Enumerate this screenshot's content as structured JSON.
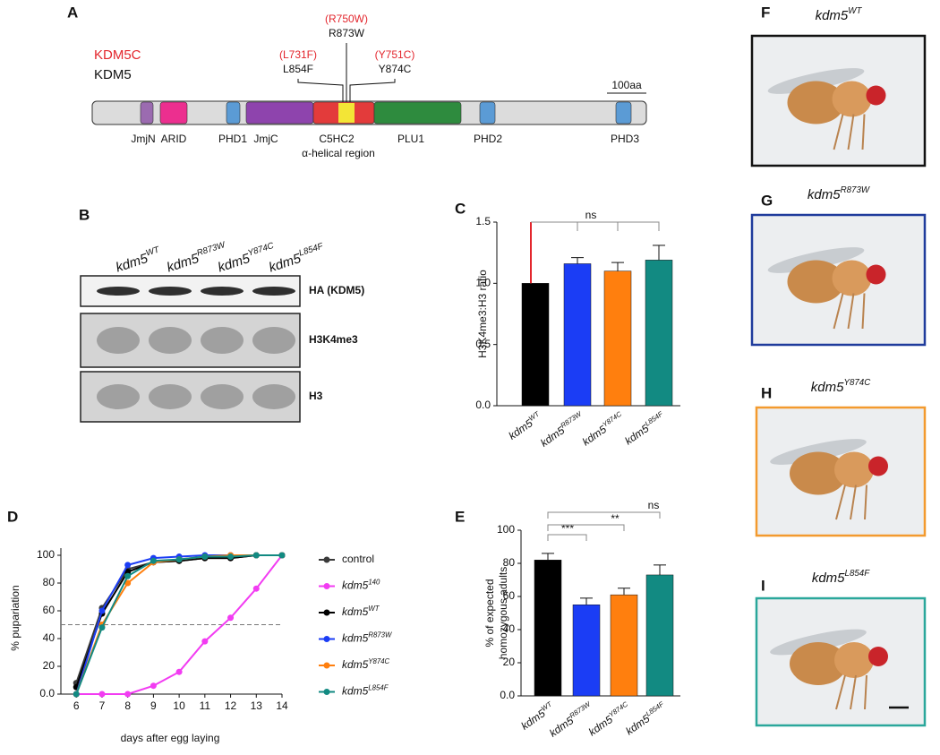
{
  "panel_labels": [
    "A",
    "B",
    "C",
    "D",
    "E",
    "F",
    "G",
    "H",
    "I"
  ],
  "protein_diagram": {
    "legend": [
      {
        "text": "KDM5C",
        "color": "#e3262d"
      },
      {
        "text": "KDM5",
        "color": "#111111"
      }
    ],
    "domains": [
      {
        "label": "JmjN",
        "color": "#9b6bb0"
      },
      {
        "label": "ARID",
        "color": "#ec2f8f"
      },
      {
        "label": "PHD1",
        "color": "#5b9bd5"
      },
      {
        "label": "JmjC",
        "color": "#8e44ad"
      },
      {
        "label": "C5HC2",
        "color": "#e33b3b"
      },
      {
        "label": "PLU1",
        "color": "#2e8b3e"
      },
      {
        "label": "PHD2",
        "color": "#5b9bd5"
      },
      {
        "label": "PHD3",
        "color": "#5b9bd5"
      }
    ],
    "region_label": "α-helical region",
    "mutations": [
      {
        "human": "(L731F)",
        "fly": "L854F"
      },
      {
        "human": "(R750W)",
        "fly": "R873W"
      },
      {
        "human": "(Y751C)",
        "fly": "Y874C"
      }
    ],
    "scale_label": "100aa"
  },
  "western_blot": {
    "lanes": [
      {
        "base": "kdm5",
        "sup": "WT"
      },
      {
        "base": "kdm5",
        "sup": "R873W"
      },
      {
        "base": "kdm5",
        "sup": "Y874C"
      },
      {
        "base": "kdm5",
        "sup": "L854F"
      }
    ],
    "blots": [
      "HA (KDM5)",
      "H3K4me3",
      "H3"
    ]
  },
  "chart_data": [
    {
      "type": "bar",
      "ylabel": "H3K4me3:H3 ratio",
      "categories": [
        {
          "base": "kdm5",
          "sup": "WT"
        },
        {
          "base": "kdm5",
          "sup": "R873W"
        },
        {
          "base": "kdm5",
          "sup": "Y874C"
        },
        {
          "base": "kdm5",
          "sup": "L854F"
        }
      ],
      "values": [
        1.0,
        1.16,
        1.1,
        1.19
      ],
      "errors": [
        null,
        0.05,
        0.07,
        0.12
      ],
      "colors": [
        "#000000",
        "#1b3df5",
        "#ff7f0e",
        "#128a82"
      ],
      "ylim": [
        0,
        1.5
      ],
      "yticks": [
        {
          "value": 0,
          "label": "0.0"
        },
        {
          "value": 0.5,
          "label": "0.5"
        },
        {
          "value": 1,
          "label": "1.0"
        },
        {
          "value": 1.5,
          "label": "1.5"
        }
      ],
      "annotations": [
        "ns"
      ]
    },
    {
      "type": "line",
      "xlabel": "days after egg laying",
      "ylabel": "% pupariation",
      "x": [
        6,
        7,
        8,
        9,
        10,
        11,
        12,
        13,
        14
      ],
      "xlim": [
        5.4,
        14
      ],
      "xticks": [
        6,
        7,
        8,
        9,
        10,
        11,
        12,
        13,
        14
      ],
      "ylim": [
        0,
        100
      ],
      "yticks": [
        {
          "value": 0,
          "label": "0.0"
        },
        20,
        40,
        60,
        80,
        100
      ],
      "hline": 50,
      "series": [
        {
          "name": "control",
          "color": "#3a3a3a",
          "values": [
            8,
            62,
            90,
            95,
            96,
            98,
            98,
            100,
            100
          ]
        },
        {
          "name": {
            "base": "kdm5",
            "sup": "140"
          },
          "color": "#f23cf2",
          "values": [
            0,
            0,
            0,
            6,
            16,
            38,
            55,
            76,
            100
          ]
        },
        {
          "name": {
            "base": "kdm5",
            "sup": "WT"
          },
          "color": "#000000",
          "values": [
            5,
            58,
            88,
            95,
            96,
            98,
            98,
            100,
            100
          ]
        },
        {
          "name": {
            "base": "kdm5",
            "sup": "R873W"
          },
          "color": "#1b3df5",
          "values": [
            0,
            60,
            93,
            98,
            99,
            100,
            100,
            100,
            100
          ]
        },
        {
          "name": {
            "base": "kdm5",
            "sup": "Y874C"
          },
          "color": "#ff7f0e",
          "values": [
            0,
            50,
            80,
            95,
            97,
            99,
            100,
            100,
            100
          ]
        },
        {
          "name": {
            "base": "kdm5",
            "sup": "L854F"
          },
          "color": "#128a82",
          "values": [
            0,
            48,
            85,
            96,
            97,
            99,
            99,
            100,
            100
          ]
        }
      ]
    },
    {
      "type": "bar",
      "ylabel": [
        "% of expected",
        "homozygous adults"
      ],
      "categories": [
        {
          "base": "kdm5",
          "sup": "WT"
        },
        {
          "base": "kdm5",
          "sup": "R873W"
        },
        {
          "base": "kdm5",
          "sup": "Y874C"
        },
        {
          "base": "kdm5",
          "sup": "L854F"
        }
      ],
      "values": [
        82,
        55,
        61,
        73
      ],
      "errors": [
        4,
        4,
        4,
        6
      ],
      "colors": [
        "#000000",
        "#1b3df5",
        "#ff7f0e",
        "#128a82"
      ],
      "ylim": [
        0,
        100
      ],
      "yticks": [
        {
          "value": 0,
          "label": "0.0"
        },
        20,
        40,
        60,
        80,
        100
      ],
      "annotations": [
        "***",
        "**",
        "ns"
      ]
    }
  ],
  "fly_images": [
    {
      "genotype": {
        "base": "kdm5",
        "sup": "WT"
      },
      "frame": "#111111"
    },
    {
      "genotype": {
        "base": "kdm5",
        "sup": "R873W"
      },
      "frame": "#1f3b9c"
    },
    {
      "genotype": {
        "base": "kdm5",
        "sup": "Y874C"
      },
      "frame": "#f39a2e"
    },
    {
      "genotype": {
        "base": "kdm5",
        "sup": "L854F"
      },
      "frame": "#2aa79b"
    }
  ]
}
